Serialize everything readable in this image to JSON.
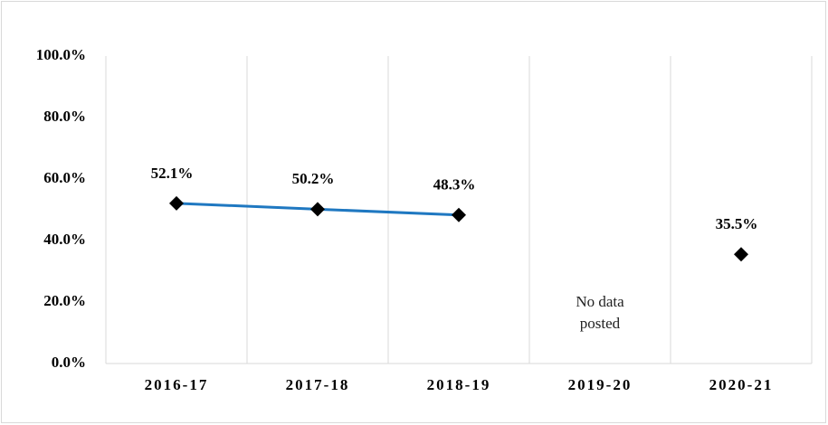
{
  "chart_data": {
    "type": "line",
    "categories": [
      "2016-17",
      "2017-18",
      "2018-19",
      "2019-20",
      "2020-21"
    ],
    "values": [
      52.1,
      50.2,
      48.3,
      null,
      35.5
    ],
    "value_labels": [
      "52.1%",
      "50.2%",
      "48.3%",
      null,
      "35.5%"
    ],
    "color": "#1f78c1",
    "marker_color": "#000000",
    "ylim": [
      0,
      100
    ],
    "yticks": [
      {
        "value": 0,
        "label": "0.0%"
      },
      {
        "value": 20,
        "label": "20.0%"
      },
      {
        "value": 40,
        "label": "40.0%"
      },
      {
        "value": 60,
        "label": "60.0%"
      },
      {
        "value": 80,
        "label": "80.0%"
      },
      {
        "value": 100,
        "label": "100.0%"
      }
    ],
    "grid": true,
    "annotation": "No data posted"
  }
}
